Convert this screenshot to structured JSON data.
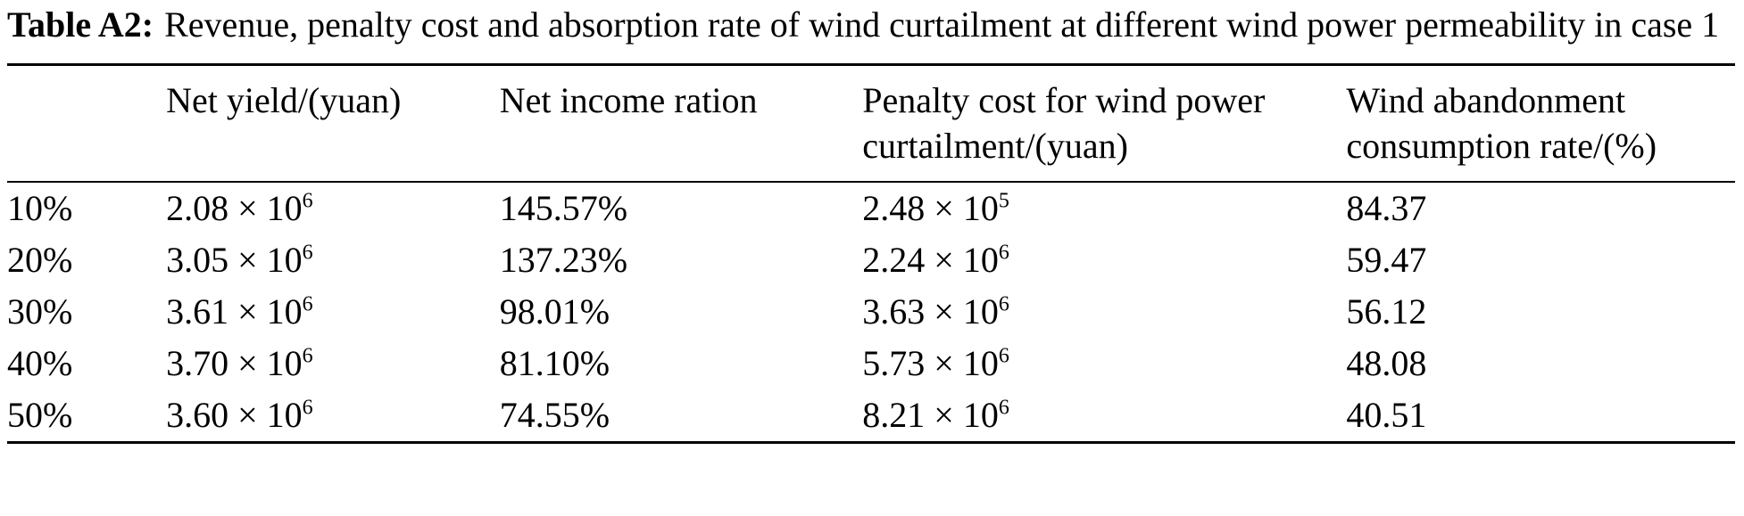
{
  "caption": {
    "label": "Table A2:",
    "text": "Revenue, penalty cost and absorption rate of wind curtailment at different wind power permeability in case 1"
  },
  "table": {
    "headers": {
      "permeability": "",
      "net_yield": "Net yield/(yuan)",
      "net_income": "Net income ration",
      "penalty": "Penalty cost for wind power curtailment/(yuan)",
      "absorption": "Wind abandonment consumption rate/(%)"
    },
    "times_ten": "× 10",
    "rows": [
      {
        "permeability": "10%",
        "net_yield": {
          "coef": "2.08",
          "exp": "6"
        },
        "net_income": "145.57%",
        "penalty": {
          "coef": "2.48",
          "exp": "5"
        },
        "absorption": "84.37"
      },
      {
        "permeability": "20%",
        "net_yield": {
          "coef": "3.05",
          "exp": "6"
        },
        "net_income": "137.23%",
        "penalty": {
          "coef": "2.24",
          "exp": "6"
        },
        "absorption": "59.47"
      },
      {
        "permeability": "30%",
        "net_yield": {
          "coef": "3.61",
          "exp": "6"
        },
        "net_income": "98.01%",
        "penalty": {
          "coef": "3.63",
          "exp": "6"
        },
        "absorption": "56.12"
      },
      {
        "permeability": "40%",
        "net_yield": {
          "coef": "3.70",
          "exp": "6"
        },
        "net_income": "81.10%",
        "penalty": {
          "coef": "5.73",
          "exp": "6"
        },
        "absorption": "48.08"
      },
      {
        "permeability": "50%",
        "net_yield": {
          "coef": "3.60",
          "exp": "6"
        },
        "net_income": "74.55%",
        "penalty": {
          "coef": "8.21",
          "exp": "6"
        },
        "absorption": "40.51"
      }
    ]
  }
}
